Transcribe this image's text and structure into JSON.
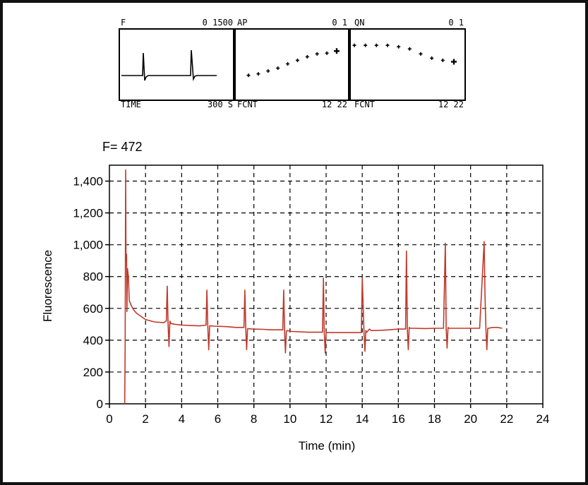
{
  "monitor": {
    "panels": [
      {
        "top_left": "F",
        "top_right": "0 1500",
        "bottom_left": "TIME",
        "bottom_right": "300 S"
      },
      {
        "top_left": "AP",
        "top_right": "0 1",
        "bottom_left": "FCNT",
        "bottom_right": "12 22",
        "points": [
          0.35,
          0.37,
          0.41,
          0.45,
          0.51,
          0.56,
          0.61,
          0.65,
          0.66,
          0.69
        ]
      },
      {
        "top_left": "QN",
        "top_right": "0 1",
        "bottom_left": "FCNT",
        "bottom_right": "12 22",
        "points": [
          0.77,
          0.77,
          0.77,
          0.77,
          0.75,
          0.72,
          0.65,
          0.59,
          0.56,
          0.54
        ]
      }
    ]
  },
  "readout": "F= 472",
  "chart_data": {
    "type": "line",
    "title": "",
    "xlabel": "Time (min)",
    "ylabel": "Fluorescence",
    "xlim": [
      0,
      24
    ],
    "ylim": [
      0,
      1500
    ],
    "xticks": [
      0,
      2,
      4,
      6,
      8,
      10,
      12,
      14,
      16,
      18,
      20,
      22,
      24
    ],
    "yticks": [
      0,
      200,
      400,
      600,
      800,
      1000,
      1200,
      1400
    ],
    "ytick_labels": [
      "0",
      "200",
      "400",
      "600",
      "800",
      "1,000",
      "1,200",
      "1,400"
    ],
    "grid": true,
    "line_color": "#c0392b",
    "series": [
      {
        "x": [
          0.85,
          0.87,
          0.9,
          0.92,
          0.95,
          0.97,
          1.0,
          1.05,
          1.1,
          1.2,
          1.35,
          1.5,
          1.75,
          2.0,
          2.5,
          3.0,
          3.15,
          3.2,
          3.25,
          3.3,
          3.35,
          3.4,
          3.6,
          4.0,
          4.5,
          5.0,
          5.35,
          5.4,
          5.45,
          5.5,
          5.55,
          5.6,
          5.8,
          6.5,
          7.0,
          7.45,
          7.5,
          7.55,
          7.6,
          7.65,
          7.7,
          7.9,
          8.5,
          9.0,
          9.6,
          9.65,
          9.7,
          9.75,
          9.8,
          9.85,
          10.1,
          11.0,
          11.8,
          11.85,
          11.9,
          11.95,
          12.0,
          12.05,
          12.3,
          13.0,
          13.95,
          14.0,
          14.1,
          14.15,
          14.2,
          14.25,
          14.4,
          14.5,
          15.0,
          15.5,
          16.0,
          16.4,
          16.45,
          16.5,
          16.55,
          16.6,
          16.65,
          16.9,
          17.5,
          18.0,
          18.5,
          18.6,
          18.65,
          18.7,
          18.75,
          18.8,
          19.0,
          19.5,
          20.0,
          20.5,
          20.75,
          20.8,
          20.85,
          20.9,
          20.95,
          21.0,
          21.2,
          21.5,
          21.75
        ],
        "y": [
          0,
          350,
          1470,
          900,
          940,
          580,
          850,
          800,
          650,
          620,
          590,
          570,
          550,
          530,
          515,
          510,
          520,
          740,
          505,
          360,
          520,
          505,
          500,
          495,
          492,
          490,
          495,
          715,
          485,
          340,
          490,
          490,
          488,
          485,
          480,
          480,
          715,
          470,
          340,
          472,
          472,
          470,
          468,
          465,
          465,
          715,
          455,
          320,
          458,
          460,
          455,
          450,
          450,
          790,
          445,
          320,
          450,
          448,
          448,
          448,
          448,
          790,
          445,
          330,
          460,
          450,
          470,
          460,
          462,
          465,
          470,
          470,
          960,
          465,
          340,
          480,
          475,
          475,
          473,
          475,
          475,
          1010,
          470,
          350,
          480,
          475,
          475,
          475,
          475,
          475,
          1020,
          680,
          470,
          340,
          475,
          475,
          480,
          480,
          475
        ]
      }
    ]
  }
}
